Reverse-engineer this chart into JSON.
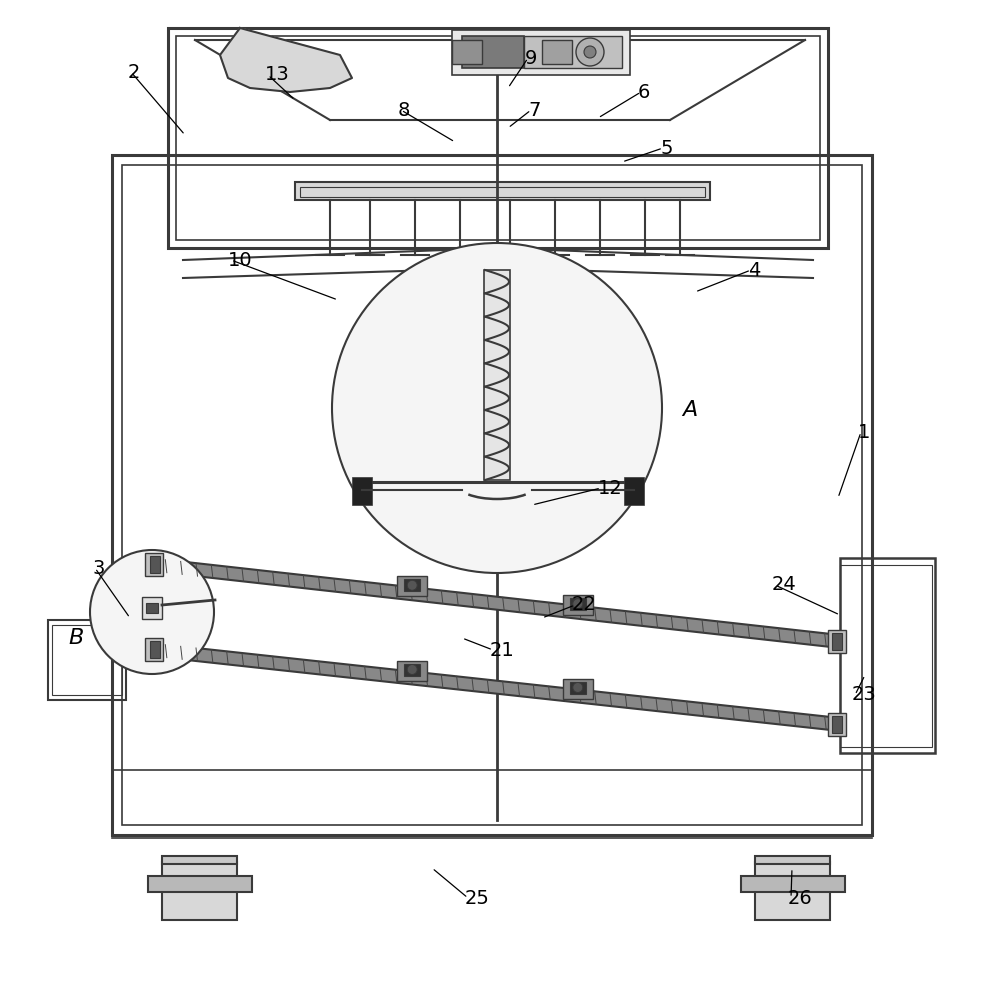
{
  "bg": "#ffffff",
  "lc": "#3a3a3a",
  "lw": 1.5,
  "gray_light": "#d8d8d8",
  "gray_mid": "#a0a0a0",
  "gray_dark": "#606060",
  "screen_color": "#888888",
  "label_fs": 14,
  "labels_with_leaders": [
    [
      "1",
      858,
      432,
      838,
      498
    ],
    [
      "2",
      128,
      72,
      185,
      135
    ],
    [
      "3",
      92,
      568,
      130,
      618
    ],
    [
      "4",
      748,
      270,
      695,
      292
    ],
    [
      "5",
      660,
      148,
      622,
      162
    ],
    [
      "6",
      638,
      92,
      598,
      118
    ],
    [
      "7",
      528,
      110,
      508,
      128
    ],
    [
      "8",
      398,
      110,
      455,
      142
    ],
    [
      "9",
      525,
      58,
      508,
      88
    ],
    [
      "10",
      228,
      260,
      338,
      300
    ],
    [
      "12",
      598,
      488,
      532,
      505
    ],
    [
      "13",
      265,
      75,
      295,
      100
    ],
    [
      "21",
      490,
      650,
      462,
      638
    ],
    [
      "22",
      572,
      605,
      542,
      618
    ],
    [
      "23",
      852,
      695,
      865,
      675
    ],
    [
      "24",
      772,
      585,
      840,
      615
    ],
    [
      "25",
      465,
      898,
      432,
      868
    ],
    [
      "26",
      788,
      898,
      792,
      868
    ]
  ],
  "labels_plain": [
    [
      "A",
      682,
      410
    ],
    [
      "B",
      68,
      638
    ]
  ]
}
